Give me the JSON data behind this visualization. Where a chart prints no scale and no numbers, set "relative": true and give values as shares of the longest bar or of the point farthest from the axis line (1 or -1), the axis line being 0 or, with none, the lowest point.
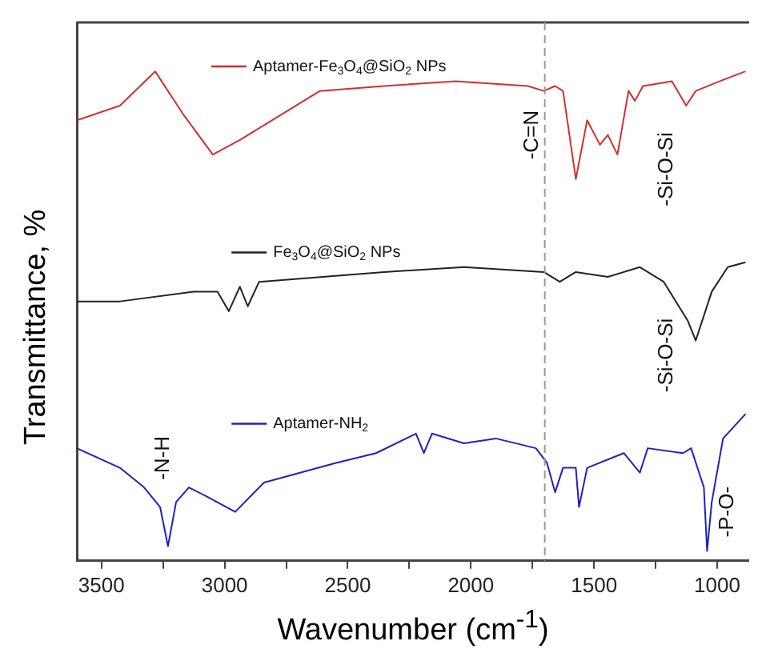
{
  "chart_data": {
    "type": "line",
    "relative": true,
    "xlabel": "Wavenumber (cm$^{-1}$)",
    "ylabel": "Transmittance, %",
    "xlim": [
      3600,
      870
    ],
    "xticks": [
      3500,
      {
        "value": 3250,
        "label": null
      },
      3000,
      {
        "value": 2750,
        "label": null
      },
      2500,
      {
        "value": 2250,
        "label": null
      },
      2000,
      {
        "value": 1750,
        "label": null
      },
      1500,
      {
        "value": 1250,
        "label": null
      },
      1000
    ],
    "legend": "top left",
    "grid": false,
    "marker": "none",
    "line_style": "solid",
    "ref_lines": [
      {
        "axis": "x",
        "value": 1700,
        "color": "#999999",
        "line_style": "dashed"
      }
    ],
    "annotations": [
      "-C=N",
      "-Si-O-Si",
      "-Si-O-Si",
      "-N-H",
      "-P-O-"
    ],
    "series": [
      {
        "name": "Aptamer-Fe$_{3}$O$_{4}$@SiO$_{2}$ NPs",
        "color": "#d03030",
        "x": [
          3600,
          3425,
          3282,
          3165,
          3048,
          2938,
          2808,
          2613,
          2353,
          2061,
          1769,
          1704,
          1658,
          1626,
          1574,
          1528,
          1476,
          1444,
          1405,
          1360,
          1334,
          1301,
          1184,
          1126,
          1087,
          989,
          885
        ],
        "values": [
          0.9,
          0.93,
          1.0,
          0.91,
          0.83,
          0.86,
          0.9,
          0.96,
          0.97,
          0.98,
          0.97,
          0.96,
          0.97,
          0.96,
          0.78,
          0.9,
          0.85,
          0.87,
          0.83,
          0.96,
          0.94,
          0.97,
          0.98,
          0.93,
          0.96,
          0.98,
          1.0
        ]
      },
      {
        "name": "Fe$_{3}$O$_{4}$@SiO$_{2}$ NPs",
        "color": "#222222",
        "x": [
          3600,
          3425,
          3126,
          3029,
          2983,
          2938,
          2906,
          2860,
          2353,
          2028,
          1704,
          1639,
          1574,
          1444,
          1314,
          1217,
          1119,
          1087,
          1022,
          957,
          885
        ],
        "values": [
          0.53,
          0.53,
          0.55,
          0.55,
          0.51,
          0.56,
          0.52,
          0.57,
          0.59,
          0.6,
          0.59,
          0.57,
          0.59,
          0.58,
          0.6,
          0.57,
          0.49,
          0.45,
          0.55,
          0.6,
          0.61
        ]
      },
      {
        "name": "Aptamer-NH$_{2}$",
        "color": "#2020c0",
        "x": [
          3600,
          3425,
          3327,
          3262,
          3230,
          3197,
          3145,
          3067,
          2957,
          2840,
          2548,
          2385,
          2223,
          2191,
          2158,
          2028,
          1899,
          1736,
          1691,
          1658,
          1626,
          1574,
          1561,
          1528,
          1379,
          1314,
          1282,
          1139,
          1106,
          1054,
          1041,
          1022,
          976,
          885
        ],
        "values": [
          0.23,
          0.19,
          0.15,
          0.11,
          0.03,
          0.12,
          0.15,
          0.13,
          0.1,
          0.16,
          0.2,
          0.22,
          0.26,
          0.22,
          0.26,
          0.24,
          0.25,
          0.23,
          0.2,
          0.14,
          0.19,
          0.19,
          0.11,
          0.19,
          0.22,
          0.18,
          0.23,
          0.22,
          0.23,
          0.15,
          0.02,
          0.12,
          0.25,
          0.3
        ]
      }
    ]
  }
}
